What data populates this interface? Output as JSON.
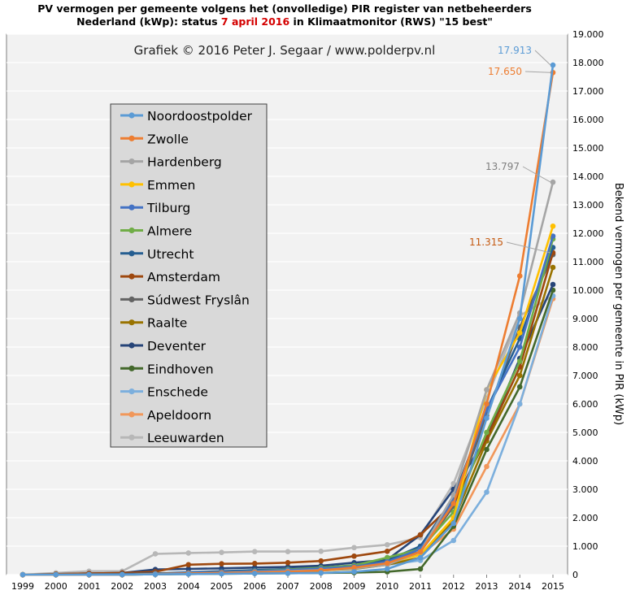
{
  "title": {
    "line1": "PV vermogen per gemeente volgens het (onvolledige) PIR register van netbeheerders",
    "line2_pre": "Nederland (kWp): status ",
    "line2_highlight": "7 april 2016",
    "line2_post": " in Klimaatmonitor (RWS) \"15 best\""
  },
  "credit": "Grafiek © 2016 Peter J. Segaar / www.polderpv.nl",
  "chart_data": {
    "type": "line",
    "x": [
      "1999",
      "2000",
      "2001",
      "2002",
      "2003",
      "2004",
      "2005",
      "2006",
      "2007",
      "2008",
      "2009",
      "2010",
      "2011",
      "2012",
      "2013",
      "2014",
      "2015"
    ],
    "ylabel": "Bekend vermogen per gemeente in PIR (kWp)",
    "ylim": [
      0,
      19000
    ],
    "yticks": [
      0,
      1000,
      2000,
      3000,
      4000,
      5000,
      6000,
      7000,
      8000,
      9000,
      10000,
      11000,
      12000,
      13000,
      14000,
      15000,
      16000,
      17000,
      18000,
      19000
    ],
    "ytick_labels": [
      "0",
      "1.000",
      "2.000",
      "3.000",
      "4.000",
      "5.000",
      "6.000",
      "7.000",
      "8.000",
      "9.000",
      "10.000",
      "11.000",
      "12.000",
      "13.000",
      "14.000",
      "15.000",
      "16.000",
      "17.000",
      "18.000",
      "19.000"
    ],
    "y_axis_side": "right",
    "legend_position": "left",
    "series": [
      {
        "name": "Noordoostpolder",
        "color": "#5b9bd5",
        "values": [
          0,
          0,
          0,
          0,
          10,
          20,
          30,
          40,
          50,
          60,
          100,
          200,
          600,
          1800,
          5500,
          9000,
          17913
        ]
      },
      {
        "name": "Zwolle",
        "color": "#ed7d31",
        "values": [
          0,
          0,
          0,
          0,
          20,
          40,
          60,
          80,
          100,
          150,
          250,
          400,
          800,
          2500,
          6000,
          10500,
          17650
        ]
      },
      {
        "name": "Hardenberg",
        "color": "#a5a5a5",
        "values": [
          0,
          0,
          0,
          0,
          10,
          30,
          60,
          90,
          120,
          160,
          220,
          350,
          800,
          2800,
          6500,
          9200,
          13797
        ]
      },
      {
        "name": "Emmen",
        "color": "#ffc000",
        "values": [
          0,
          0,
          0,
          0,
          20,
          40,
          60,
          80,
          110,
          150,
          220,
          400,
          700,
          2000,
          6500,
          8500,
          12250
        ]
      },
      {
        "name": "Tilburg",
        "color": "#4472c4",
        "values": [
          0,
          0,
          0,
          0,
          30,
          60,
          90,
          120,
          160,
          210,
          280,
          450,
          900,
          2600,
          5800,
          8000,
          11900
        ]
      },
      {
        "name": "Almere",
        "color": "#70ad47",
        "values": [
          0,
          0,
          0,
          0,
          20,
          50,
          90,
          130,
          180,
          240,
          320,
          600,
          900,
          2200,
          5000,
          7500,
          11800
        ]
      },
      {
        "name": "Utrecht",
        "color": "#255e91",
        "values": [
          0,
          0,
          10,
          20,
          40,
          80,
          120,
          160,
          200,
          250,
          330,
          500,
          1000,
          2700,
          5800,
          8300,
          11500
        ]
      },
      {
        "name": "Amsterdam",
        "color": "#9e480e",
        "values": [
          0,
          20,
          40,
          60,
          100,
          350,
          380,
          390,
          420,
          480,
          650,
          820,
          1400,
          2500,
          4800,
          7300,
          11315
        ]
      },
      {
        "name": "Súdwest Fryslân",
        "color": "#636363",
        "values": [
          0,
          0,
          0,
          10,
          30,
          60,
          100,
          140,
          180,
          230,
          300,
          500,
          800,
          2400,
          5600,
          8700,
          11250
        ]
      },
      {
        "name": "Raalte",
        "color": "#997300",
        "values": [
          0,
          0,
          0,
          0,
          10,
          30,
          50,
          80,
          110,
          150,
          200,
          350,
          600,
          1900,
          4700,
          7000,
          10800
        ]
      },
      {
        "name": "Deventer",
        "color": "#264478",
        "values": [
          0,
          20,
          40,
          60,
          180,
          200,
          220,
          250,
          270,
          310,
          420,
          520,
          1400,
          3000,
          4800,
          7600,
          10200
        ]
      },
      {
        "name": "Eindhoven",
        "color": "#43682b",
        "values": [
          0,
          0,
          0,
          0,
          10,
          20,
          30,
          40,
          50,
          60,
          70,
          100,
          200,
          1700,
          4400,
          6600,
          10000
        ]
      },
      {
        "name": "Enschede",
        "color": "#7cafdd",
        "values": [
          0,
          0,
          0,
          0,
          10,
          30,
          50,
          80,
          110,
          150,
          200,
          350,
          500,
          1200,
          2900,
          6000,
          9800
        ]
      },
      {
        "name": "Apeldoorn",
        "color": "#f1975a",
        "values": [
          0,
          0,
          0,
          0,
          10,
          30,
          50,
          80,
          110,
          150,
          250,
          450,
          700,
          1600,
          3800,
          6000,
          9700
        ]
      },
      {
        "name": "Leeuwarden",
        "color": "#b7b7b7",
        "values": [
          0,
          60,
          120,
          120,
          730,
          760,
          780,
          810,
          810,
          820,
          950,
          1050,
          1300,
          3200,
          6200,
          9100,
          9800
        ]
      }
    ],
    "annotations": [
      {
        "text": "17.913",
        "series": "Noordoostpolder",
        "x": "2015",
        "color": "#5b9bd5"
      },
      {
        "text": "17.650",
        "series": "Zwolle",
        "x": "2015",
        "color": "#ed7d31"
      },
      {
        "text": "13.797",
        "series": "Hardenberg",
        "x": "2015",
        "color": "#7f7f7f"
      },
      {
        "text": "11.315",
        "series": "Amsterdam",
        "x": "2015",
        "color": "#c55a11"
      }
    ]
  }
}
